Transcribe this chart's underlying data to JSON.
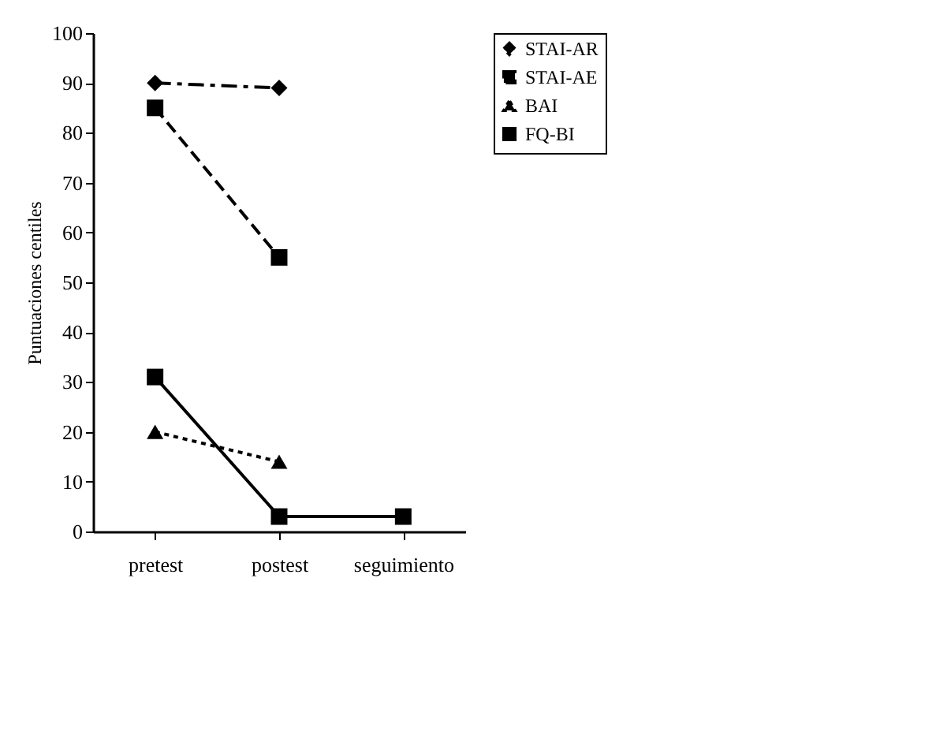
{
  "chart_data": {
    "type": "line",
    "ylabel": "Puntuaciones centiles",
    "categories": [
      "pretest",
      "postest",
      "seguimiento"
    ],
    "ylim": [
      0,
      100
    ],
    "yticks": [
      0,
      10,
      20,
      30,
      40,
      50,
      60,
      70,
      80,
      90,
      100
    ],
    "grid": false,
    "legend": "right",
    "series": [
      {
        "name": "STAI-AR",
        "color": "#000000",
        "values": [
          90,
          89,
          null
        ],
        "marker": "diamond",
        "line_style": "dashdot"
      },
      {
        "name": "STAI-AE",
        "color": "#000000",
        "values": [
          85,
          55,
          null
        ],
        "marker": "square",
        "line_style": "dashed"
      },
      {
        "name": "BAI",
        "color": "#000000",
        "values": [
          20,
          14,
          null
        ],
        "marker": "triangle",
        "line_style": "dotted"
      },
      {
        "name": "FQ-BI",
        "color": "#000000",
        "values": [
          31,
          3,
          3
        ],
        "marker": "square",
        "line_style": "solid"
      }
    ]
  }
}
